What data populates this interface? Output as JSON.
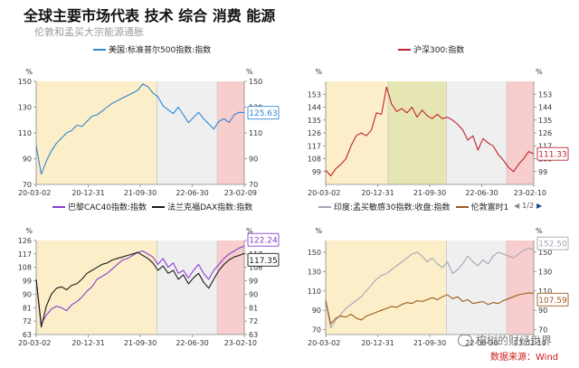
{
  "header": {
    "title": "全球主要市场代表 技术 综合 消费 能源",
    "subtitle": "伦敦和孟买大宗能源通胀"
  },
  "legends": {
    "spx": "美国:标准普尔500指数:指数",
    "csi": "沪深300:指数",
    "cac": "巴黎CAC40指数:指数",
    "dax": "法兰克福DAX指数:指数",
    "sensex": "印度:孟买敏感30指数:收盘:指数",
    "ftse": "伦敦富时1"
  },
  "pager": {
    "label": "1/2"
  },
  "footer": {
    "watermark": "榕树的财经世界",
    "source": "数据来源：Wind"
  },
  "colors": {
    "spx": "#2e86d6",
    "csi": "#c0232b",
    "cac": "#8a3fd1",
    "dax": "#1a1a1a",
    "sensex": "#a0a7b3",
    "ftse": "#9c5a1e",
    "shade_yellow": "#fbeec8",
    "shade_gray": "#efefef",
    "shade_pink": "#f8cdcd",
    "shade_olive": "#e6e6b4"
  },
  "chart_data": [
    {
      "type": "line",
      "unit_left": "%",
      "unit_right": "%",
      "ylim": [
        70,
        150
      ],
      "yticks": [
        70,
        90,
        110,
        130,
        150
      ],
      "xticks": [
        "20-03-02",
        "20-12-31",
        "21-09-30",
        "22-06-30",
        "23-02-09"
      ],
      "series": [
        {
          "name": "美国:标准普尔500指数:指数",
          "end_label": "125.63",
          "values": [
            100,
            78,
            88,
            96,
            102,
            106,
            110,
            112,
            116,
            115,
            119,
            123,
            124,
            127,
            130,
            133,
            135,
            137,
            139,
            141,
            143,
            148,
            146,
            141,
            138,
            131,
            128,
            125,
            130,
            124,
            118,
            122,
            126,
            121,
            117,
            113,
            119,
            121,
            118,
            124,
            126,
            125.63
          ]
        }
      ],
      "shaded_regions": [
        "yellow",
        "gray",
        "pink"
      ]
    },
    {
      "type": "line",
      "unit_left": "%",
      "unit_right": "%",
      "ylim": [
        90,
        162
      ],
      "yticks": [
        99,
        108,
        117,
        126,
        135,
        144,
        153
      ],
      "xticks": [
        "20-03-02",
        "20-12-31",
        "21-09-30",
        "22-06-30",
        "23-02-10"
      ],
      "series": [
        {
          "name": "沪深300:指数",
          "end_label": "111.33",
          "values": [
            100,
            96,
            101,
            104,
            108,
            117,
            124,
            126,
            124,
            128,
            140,
            139,
            158,
            146,
            141,
            143,
            140,
            144,
            137,
            142,
            138,
            136,
            139,
            136,
            137,
            135,
            132,
            128,
            121,
            124,
            114,
            122,
            119,
            117,
            111,
            107,
            102,
            99,
            104,
            108,
            113,
            111.33
          ]
        }
      ],
      "shaded_regions": [
        "yellow",
        "olive",
        "gray",
        "pink"
      ]
    },
    {
      "type": "line",
      "unit_left": "%",
      "unit_right": "%",
      "ylim": [
        63,
        126
      ],
      "yticks": [
        63,
        72,
        81,
        90,
        99,
        108,
        117,
        126
      ],
      "xticks": [
        "20-03-02",
        "20-12-31",
        "21-09-30",
        "22-06-30",
        "23-02-10"
      ],
      "series": [
        {
          "name": "巴黎CAC40指数:指数",
          "end_label": "122.24",
          "values": [
            100,
            70,
            76,
            80,
            82,
            81,
            79,
            83,
            85,
            88,
            92,
            95,
            100,
            102,
            104,
            107,
            110,
            113,
            114,
            116,
            118,
            119,
            117,
            115,
            110,
            114,
            108,
            111,
            104,
            106,
            101,
            106,
            110,
            104,
            100,
            106,
            110,
            114,
            117,
            119,
            121,
            122.24
          ]
        },
        {
          "name": "法兰克福DAX指数:指数",
          "end_label": "117.35",
          "values": [
            100,
            68,
            82,
            90,
            94,
            95,
            93,
            96,
            97,
            100,
            104,
            106,
            108,
            110,
            111,
            113,
            114,
            115,
            116,
            117,
            118,
            116,
            114,
            111,
            106,
            109,
            104,
            106,
            100,
            103,
            97,
            101,
            104,
            98,
            94,
            100,
            106,
            110,
            113,
            115,
            116,
            117.35
          ]
        }
      ],
      "shaded_regions": [
        "yellow",
        "gray",
        "pink"
      ]
    },
    {
      "type": "line",
      "unit_left": "%",
      "unit_right": "%",
      "ylim": [
        65,
        162
      ],
      "yticks": [
        70,
        90,
        110,
        130,
        150
      ],
      "xticks": [
        "20-03-02",
        "20-12-31",
        "21-09-30",
        "22-06-30",
        "23-02-10"
      ],
      "series": [
        {
          "name": "印度:孟买敏感30指数:收盘:指数",
          "end_label": "152.50",
          "values": [
            100,
            72,
            80,
            86,
            92,
            96,
            100,
            104,
            110,
            116,
            122,
            126,
            128,
            132,
            136,
            140,
            144,
            148,
            150,
            146,
            140,
            144,
            138,
            134,
            140,
            128,
            132,
            138,
            146,
            140,
            136,
            142,
            138,
            146,
            150,
            148,
            146,
            144,
            148,
            152,
            154,
            152.5
          ]
        },
        {
          "name": "伦敦富时1",
          "end_label": "107.59",
          "values": [
            100,
            76,
            82,
            84,
            83,
            86,
            82,
            80,
            84,
            86,
            88,
            90,
            92,
            94,
            93,
            96,
            98,
            97,
            100,
            99,
            101,
            103,
            101,
            104,
            106,
            102,
            104,
            99,
            101,
            97,
            98,
            99,
            96,
            98,
            97,
            100,
            102,
            104,
            106,
            107,
            108,
            107.59
          ]
        }
      ],
      "shaded_regions": [
        "yellow",
        "gray",
        "pink"
      ]
    }
  ]
}
